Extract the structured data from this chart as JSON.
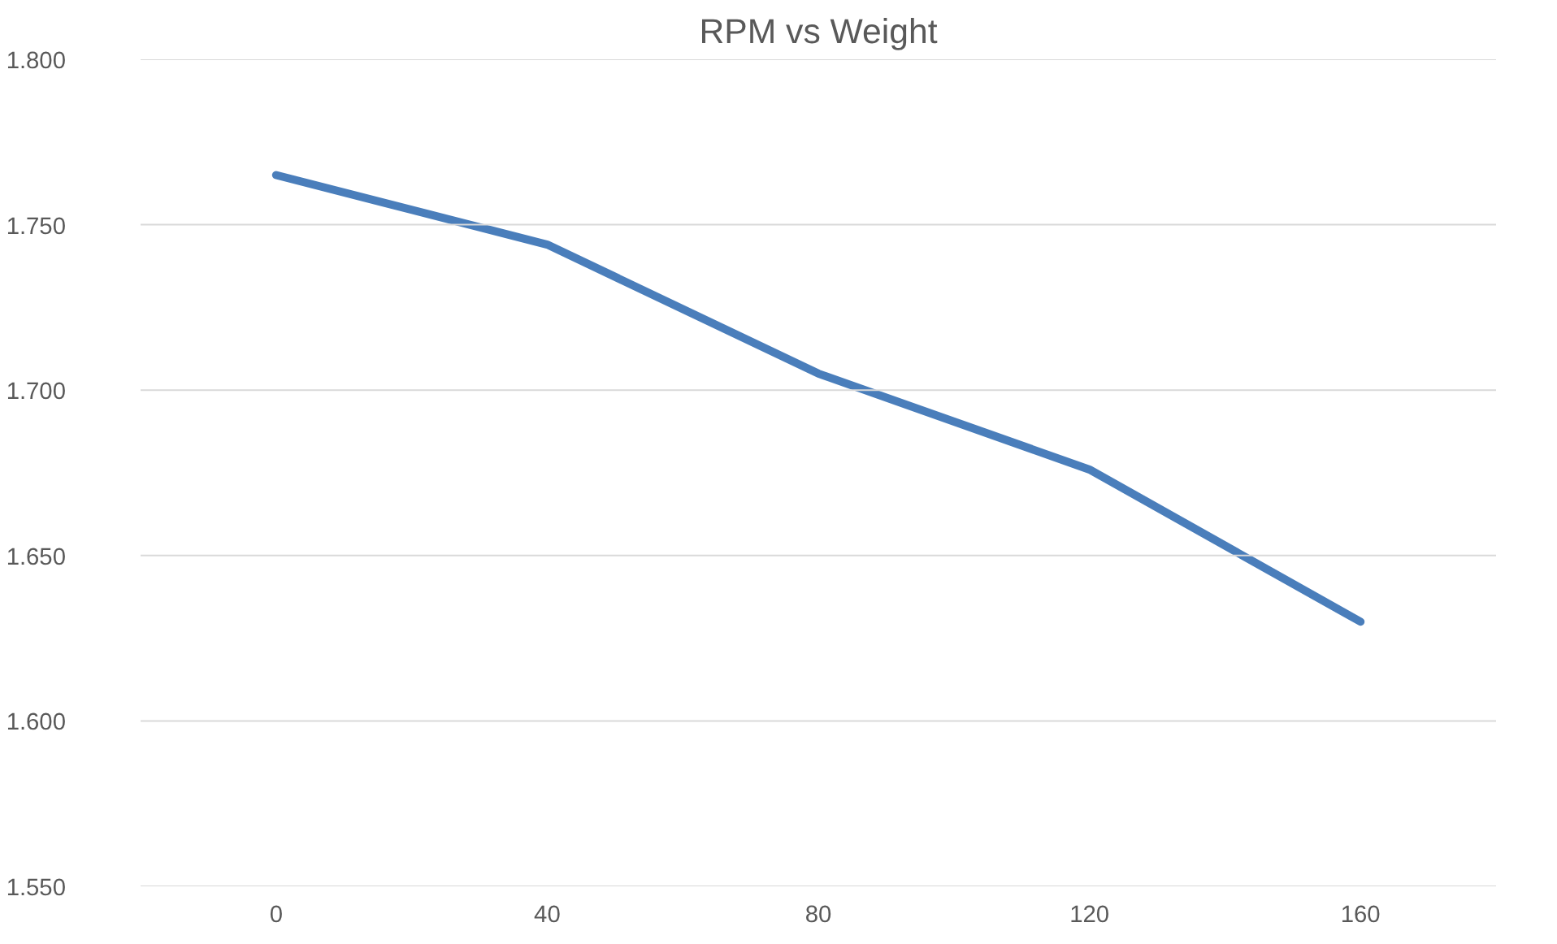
{
  "chart_data": {
    "type": "line",
    "title": "RPM vs Weight",
    "categories": [
      "0",
      "40",
      "80",
      "120",
      "160"
    ],
    "series": [
      {
        "color": "#4a7ebb",
        "values": [
          1.765,
          1.744,
          1.705,
          1.676,
          1.63
        ]
      }
    ],
    "ylim": [
      1.55,
      1.8
    ],
    "yticks": [
      {
        "value": 1.55,
        "label": "1.550"
      },
      {
        "value": 1.6,
        "label": "1.600"
      },
      {
        "value": 1.65,
        "label": "1.650"
      },
      {
        "value": 1.7,
        "label": "1.700"
      },
      {
        "value": 1.75,
        "label": "1.750"
      },
      {
        "value": 1.8,
        "label": "1.800"
      }
    ],
    "grid": "y",
    "marker": "none",
    "line_style": "solid"
  }
}
